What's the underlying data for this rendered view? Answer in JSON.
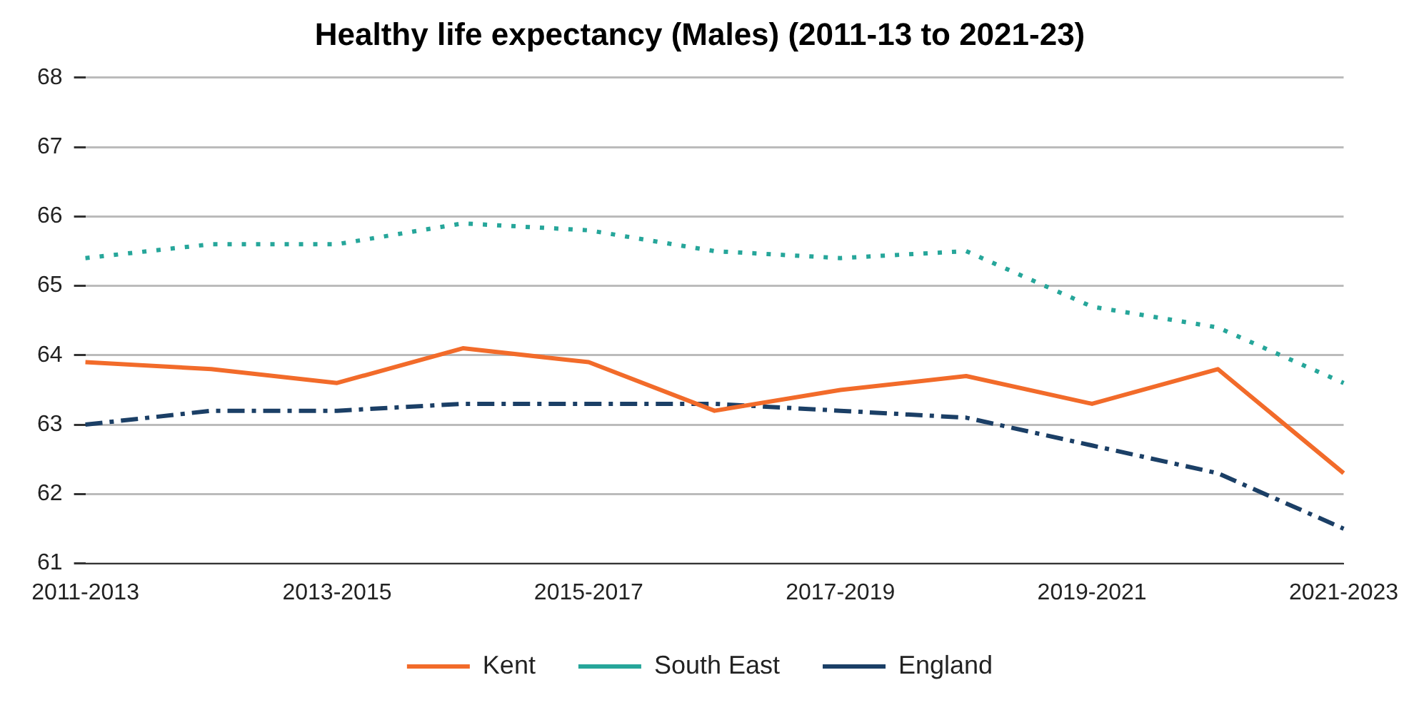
{
  "chart_data": {
    "type": "line",
    "title": "Healthy life expectancy (Males) (2011-13 to 2021-23)",
    "categories": [
      "2011-2013",
      null,
      "2013-2015",
      null,
      "2015-2017",
      null,
      "2017-2019",
      null,
      "2019-2021",
      null,
      "2021-2023"
    ],
    "series": [
      {
        "name": "Kent",
        "color": "#f26b2a",
        "line_style": "solid",
        "values": [
          63.9,
          63.8,
          63.6,
          64.1,
          63.9,
          63.2,
          63.5,
          63.7,
          63.3,
          63.8,
          62.3
        ]
      },
      {
        "name": "South East",
        "color": "#26a69a",
        "line_style": "dotted",
        "values": [
          65.4,
          65.6,
          65.6,
          65.9,
          65.8,
          65.5,
          65.4,
          65.5,
          64.7,
          64.4,
          63.6
        ]
      },
      {
        "name": "England",
        "color": "#1b3f66",
        "line_style": "dashed",
        "values": [
          63.0,
          63.2,
          63.2,
          63.3,
          63.3,
          63.3,
          63.2,
          63.1,
          62.7,
          62.3,
          61.5
        ]
      }
    ],
    "ylim": [
      61,
      68
    ],
    "yticks": [
      61,
      62,
      63,
      64,
      65,
      66,
      67,
      68
    ],
    "grid": "y",
    "legend": "bottom",
    "marker": "none"
  }
}
